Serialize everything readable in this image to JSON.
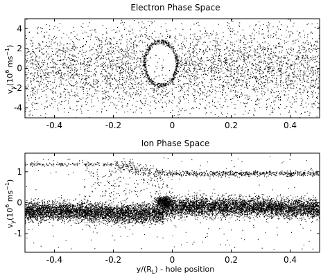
{
  "figure": {
    "background": "#ffffff",
    "ink": "#000000"
  },
  "chart_data": [
    {
      "type": "scatter",
      "title": "Electron Phase Space",
      "xlabel": "",
      "ylabel_main": "v",
      "ylabel_sub": "y",
      "ylabel_open": "(10",
      "ylabel_exp": "6",
      "ylabel_unit": " ms",
      "ylabel_unit_exp": "−1",
      "ylabel_close": ")",
      "xlim": [
        -0.5,
        0.5
      ],
      "ylim": [
        -5,
        5
      ],
      "xticks": [
        -0.4,
        -0.2,
        0,
        0.2,
        0.4
      ],
      "xtick_labels": [
        "-0.4",
        "-0.2",
        "0",
        "0.2",
        "0.4"
      ],
      "yticks": [
        4,
        2,
        0,
        -2,
        -4
      ],
      "ytick_labels": [
        "4",
        "2",
        "0",
        "-2",
        "-4"
      ],
      "grid": false,
      "description_of_distribution": {
        "core_spread_v": 2.0,
        "hole_center_x": -0.04,
        "hole_center_v": 0.5,
        "hole_half_width_x": 0.05,
        "hole_half_height_v": 2.0
      }
    },
    {
      "type": "scatter",
      "title": "Ion Phase Space",
      "xlabel_main": "y/(R",
      "xlabel_sub": "L",
      "xlabel_rest": ") - hole position",
      "ylabel_main": "v",
      "ylabel_sub": "y",
      "ylabel_open": "(10",
      "ylabel_exp": "6",
      "ylabel_unit": " ms",
      "ylabel_unit_exp": "−1",
      "ylabel_close": ")",
      "xlim": [
        -0.5,
        0.5
      ],
      "ylim": [
        -1.6,
        1.6
      ],
      "xticks": [
        -0.4,
        -0.2,
        0,
        0.2,
        0.4
      ],
      "xtick_labels": [
        "-0.4",
        "-0.2",
        "0",
        "0.2",
        "0.4"
      ],
      "yticks": [
        1,
        0,
        -1
      ],
      "ytick_labels": [
        "1",
        "0",
        "-1"
      ],
      "grid": false,
      "description_of_distribution": {
        "core_v_left": -0.3,
        "core_v_right": -0.15,
        "core_thickness_v": 0.15,
        "upper_beam_v_left": 1.25,
        "upper_beam_v_right": 0.95,
        "transition_x": -0.03,
        "bump_x": -0.03,
        "bump_v": 0.05
      }
    }
  ]
}
